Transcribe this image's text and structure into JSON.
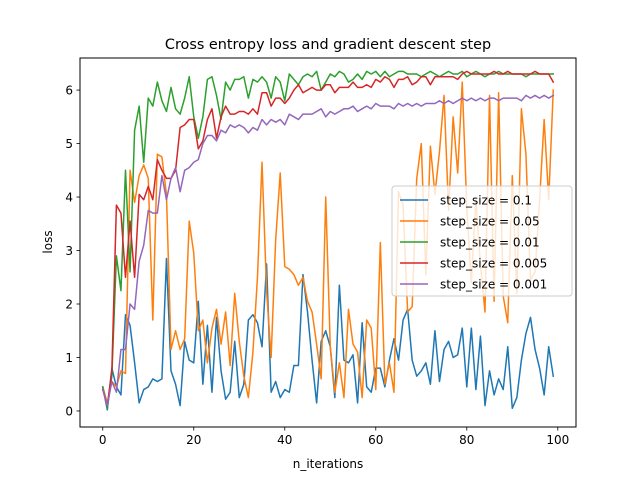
{
  "chart_data": {
    "type": "line",
    "title": "Cross entropy loss and gradient descent step",
    "xlabel": "n_iterations",
    "ylabel": "loss",
    "xlim": [
      -5,
      104
    ],
    "ylim": [
      -0.3,
      6.6
    ],
    "xticks": [
      0,
      20,
      40,
      60,
      80,
      100
    ],
    "yticks": [
      0,
      1,
      2,
      3,
      4,
      5,
      6
    ],
    "grid": false,
    "legend_position": "right",
    "x": [
      0,
      1,
      2,
      3,
      4,
      5,
      6,
      7,
      8,
      9,
      10,
      11,
      12,
      13,
      14,
      15,
      16,
      17,
      18,
      19,
      20,
      21,
      22,
      23,
      24,
      25,
      26,
      27,
      28,
      29,
      30,
      31,
      32,
      33,
      34,
      35,
      36,
      37,
      38,
      39,
      40,
      41,
      42,
      43,
      44,
      45,
      46,
      47,
      48,
      49,
      50,
      51,
      52,
      53,
      54,
      55,
      56,
      57,
      58,
      59,
      60,
      61,
      62,
      63,
      64,
      65,
      66,
      67,
      68,
      69,
      70,
      71,
      72,
      73,
      74,
      75,
      76,
      77,
      78,
      79,
      80,
      81,
      82,
      83,
      84,
      85,
      86,
      87,
      88,
      89,
      90,
      91,
      92,
      93,
      94,
      95,
      96,
      97,
      98,
      99
    ],
    "series": [
      {
        "name": "step_size = 0.1",
        "color": "#1f77b4",
        "values": [
          0.45,
          0.02,
          0.8,
          0.45,
          0.3,
          1.8,
          1.6,
          0.9,
          0.15,
          0.4,
          0.45,
          0.6,
          0.55,
          0.6,
          2.85,
          0.75,
          0.5,
          0.1,
          1.3,
          0.95,
          0.9,
          2.05,
          0.5,
          1.6,
          0.35,
          1.75,
          0.75,
          0.22,
          0.35,
          1.3,
          0.25,
          0.5,
          1.7,
          1.8,
          1.65,
          1.2,
          2.75,
          0.35,
          0.55,
          0.25,
          0.4,
          0.35,
          0.85,
          0.85,
          2.55,
          1.85,
          0.95,
          0.15,
          1.3,
          1.5,
          1.2,
          0.25,
          2.35,
          0.95,
          0.9,
          1.05,
          0.15,
          1.65,
          0.45,
          0.35,
          0.8,
          0.8,
          0.45,
          0.95,
          1.35,
          0.95,
          1.7,
          1.9,
          0.95,
          0.65,
          0.75,
          0.9,
          0.5,
          1.5,
          0.55,
          1.15,
          1.3,
          1.0,
          1.05,
          1.55,
          0.45,
          1.55,
          0.4,
          1.4,
          0.1,
          0.75,
          0.3,
          0.6,
          0.4,
          1.2,
          0.05,
          0.25,
          0.95,
          1.45,
          1.75,
          1.15,
          0.8,
          0.3,
          1.2,
          0.65
        ]
      },
      {
        "name": "step_size = 0.05",
        "color": "#ff7f0e",
        "values": [
          0.45,
          0.15,
          0.55,
          0.45,
          0.75,
          0.7,
          4.5,
          3.9,
          4.4,
          4.6,
          4.35,
          1.7,
          4.8,
          4.75,
          4.05,
          1.15,
          1.5,
          1.15,
          1.35,
          3.55,
          2.95,
          1.5,
          1.7,
          0.9,
          1.55,
          1.9,
          1.25,
          1.85,
          0.85,
          2.2,
          1.3,
          0.65,
          0.25,
          1.1,
          2.5,
          4.65,
          2.25,
          1.0,
          3.2,
          4.45,
          2.7,
          2.65,
          2.55,
          2.35,
          2.5,
          2.05,
          1.85,
          1.25,
          0.6,
          4.0,
          1.2,
          0.35,
          0.9,
          0.25,
          1.9,
          1.25,
          1.1,
          0.25,
          1.7,
          1.55,
          0.4,
          3.15,
          0.5,
          0.9,
          0.35,
          4.1,
          3.85,
          1.85,
          1.95,
          4.35,
          5.0,
          2.55,
          4.95,
          4.05,
          4.85,
          5.9,
          3.75,
          5.5,
          4.45,
          6.15,
          3.8,
          2.4,
          3.95,
          2.75,
          1.85,
          5.9,
          2.05,
          5.95,
          2.15,
          1.65,
          4.4,
          2.2,
          5.65,
          4.8,
          2.45,
          2.6,
          3.95,
          5.45,
          3.95,
          6.0
        ]
      },
      {
        "name": "step_size = 0.01",
        "color": "#2ca02c",
        "values": [
          0.45,
          0.05,
          0.65,
          2.9,
          2.25,
          4.5,
          2.6,
          5.25,
          5.7,
          4.65,
          5.85,
          5.7,
          6.15,
          5.8,
          5.6,
          6.05,
          5.65,
          5.55,
          5.85,
          6.25,
          5.5,
          5.1,
          5.5,
          6.2,
          6.25,
          5.9,
          5.45,
          6.15,
          6.0,
          6.2,
          6.2,
          6.25,
          5.85,
          6.2,
          6.15,
          6.25,
          6.15,
          5.85,
          6.25,
          6.15,
          5.8,
          6.3,
          6.2,
          6.1,
          6.25,
          6.3,
          6.25,
          6.35,
          6.0,
          6.15,
          6.3,
          6.25,
          6.35,
          6.3,
          6.15,
          6.2,
          6.3,
          6.2,
          6.35,
          6.3,
          6.35,
          6.25,
          6.35,
          6.25,
          6.3,
          6.35,
          6.35,
          6.3,
          6.3,
          6.3,
          6.25,
          6.3,
          6.35,
          6.3,
          6.25,
          6.3,
          6.35,
          6.3,
          6.3,
          6.35,
          6.25,
          6.3,
          6.35,
          6.3,
          6.25,
          6.3,
          6.3,
          6.35,
          6.3,
          6.3,
          6.3,
          6.3,
          6.3,
          6.25,
          6.3,
          6.3,
          6.3,
          6.3,
          6.3,
          6.3
        ]
      },
      {
        "name": "step_size = 0.005",
        "color": "#d62728",
        "values": [
          0.4,
          0.1,
          0.75,
          3.85,
          3.7,
          2.5,
          3.55,
          2.5,
          4.05,
          3.95,
          4.2,
          3.95,
          4.7,
          4.5,
          4.35,
          4.35,
          4.5,
          5.3,
          5.35,
          5.45,
          5.45,
          4.9,
          5.05,
          5.45,
          5.65,
          5.1,
          5.5,
          5.7,
          5.55,
          5.55,
          5.6,
          5.6,
          5.55,
          5.65,
          5.55,
          5.95,
          5.95,
          5.7,
          5.85,
          5.85,
          5.75,
          5.85,
          6.0,
          6.1,
          5.95,
          6.0,
          6.05,
          6.0,
          6.0,
          6.1,
          6.1,
          5.95,
          6.05,
          6.05,
          6.05,
          6.15,
          6.05,
          6.05,
          6.1,
          6.05,
          6.2,
          6.15,
          6.25,
          6.2,
          6.05,
          6.2,
          6.2,
          6.25,
          6.1,
          6.15,
          6.25,
          6.25,
          6.1,
          6.25,
          6.25,
          6.25,
          6.25,
          6.25,
          6.2,
          6.3,
          6.35,
          6.3,
          6.3,
          6.3,
          6.3,
          6.3,
          6.35,
          6.3,
          6.3,
          6.35,
          6.3,
          6.3,
          6.3,
          6.3,
          6.3,
          6.35,
          6.3,
          6.3,
          6.3,
          6.15
        ]
      },
      {
        "name": "step_size = 0.001",
        "color": "#9467bd",
        "values": [
          0.4,
          0.1,
          0.55,
          0.35,
          1.15,
          1.15,
          2.0,
          1.9,
          2.8,
          3.1,
          3.75,
          3.7,
          3.7,
          4.4,
          3.95,
          4.35,
          4.55,
          4.1,
          4.5,
          4.55,
          4.65,
          4.7,
          5.0,
          5.15,
          5.15,
          5.05,
          5.25,
          5.2,
          5.35,
          5.3,
          5.35,
          5.3,
          5.2,
          5.3,
          5.25,
          5.45,
          5.35,
          5.45,
          5.4,
          5.45,
          5.35,
          5.55,
          5.5,
          5.45,
          5.55,
          5.55,
          5.55,
          5.6,
          5.65,
          5.5,
          5.6,
          5.55,
          5.6,
          5.65,
          5.65,
          5.7,
          5.6,
          5.65,
          5.7,
          5.65,
          5.75,
          5.7,
          5.7,
          5.7,
          5.65,
          5.75,
          5.7,
          5.75,
          5.7,
          5.75,
          5.7,
          5.75,
          5.75,
          5.75,
          5.8,
          5.75,
          5.8,
          5.75,
          5.8,
          5.85,
          5.8,
          5.85,
          5.8,
          5.85,
          5.8,
          5.85,
          5.85,
          5.8,
          5.85,
          5.85,
          5.85,
          5.85,
          5.8,
          5.9,
          5.85,
          5.9,
          5.85,
          5.9,
          5.85,
          5.9
        ]
      }
    ]
  }
}
